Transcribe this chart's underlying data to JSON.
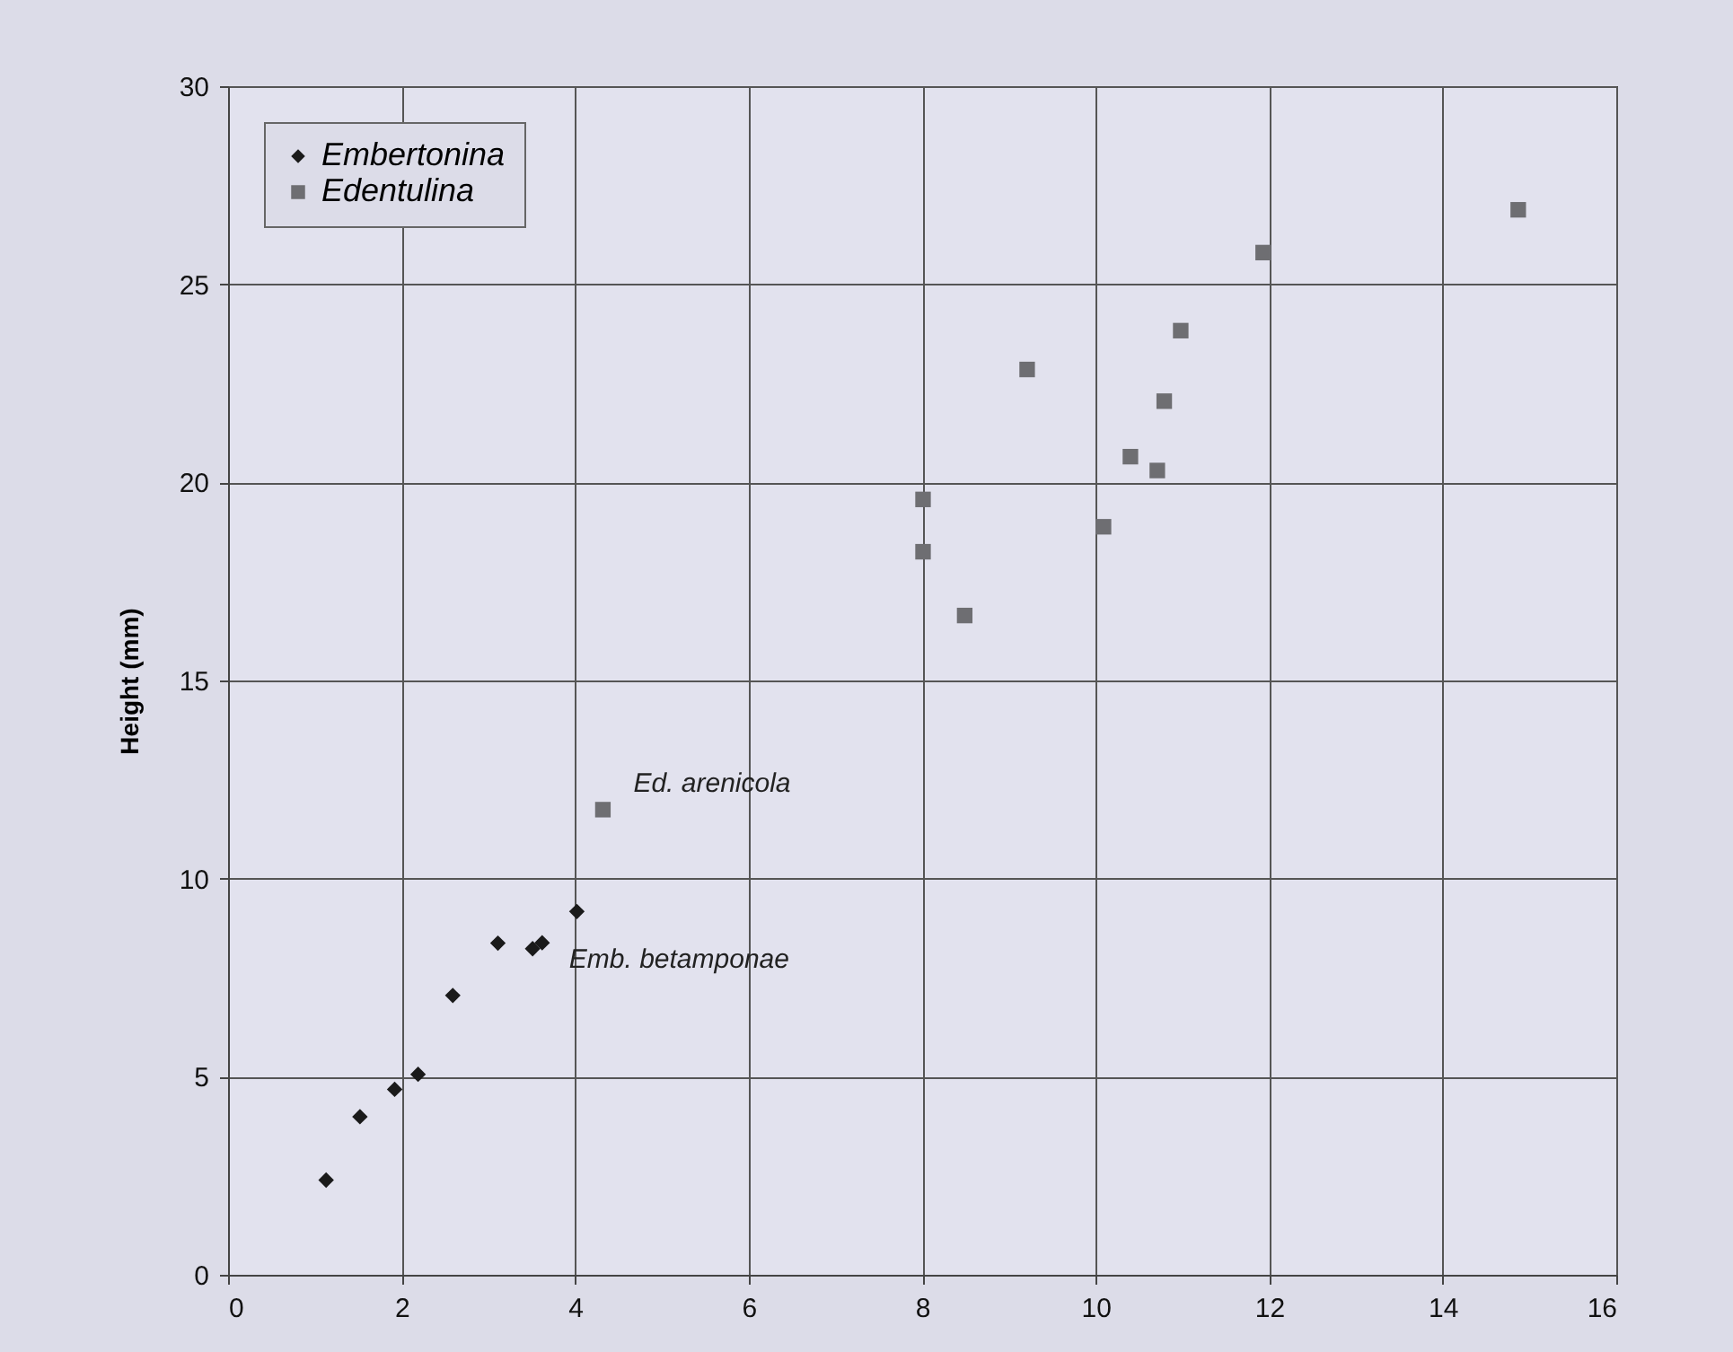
{
  "chart_data": {
    "type": "scatter",
    "ylabel": "Height (mm)",
    "xlim": [
      0,
      16
    ],
    "xticks": [
      0,
      2,
      4,
      6,
      8,
      10,
      12,
      14,
      16
    ],
    "ylim": [
      0,
      30
    ],
    "yticks": [
      0,
      5,
      10,
      15,
      20,
      25,
      30
    ],
    "grid": true,
    "legend": "top left",
    "series": [
      {
        "name": "Embertonina",
        "color": "#1a1a1a",
        "marker": "diamond",
        "x": [
          1.13,
          1.52,
          1.92,
          2.19,
          2.59,
          3.11,
          3.51,
          3.62,
          4.02
        ],
        "values": [
          2.39,
          3.99,
          4.68,
          5.06,
          7.05,
          8.37,
          8.23,
          8.38,
          9.17
        ]
      },
      {
        "name": "Edentulina",
        "color": "#6e6e72",
        "marker": "square",
        "x": [
          4.32,
          8.01,
          8.01,
          8.49,
          9.21,
          10.09,
          10.4,
          10.71,
          10.79,
          10.98,
          11.93,
          14.87
        ],
        "values": [
          11.74,
          19.57,
          18.25,
          16.64,
          22.85,
          18.88,
          20.65,
          20.3,
          22.05,
          23.83,
          25.8,
          26.88
        ]
      }
    ],
    "annotations": [
      {
        "text": "Ed. arenicola",
        "x": 4.32,
        "y": 11.74
      },
      {
        "text": "Emb. betamponae",
        "x": 3.62,
        "y": 8.38
      }
    ]
  }
}
